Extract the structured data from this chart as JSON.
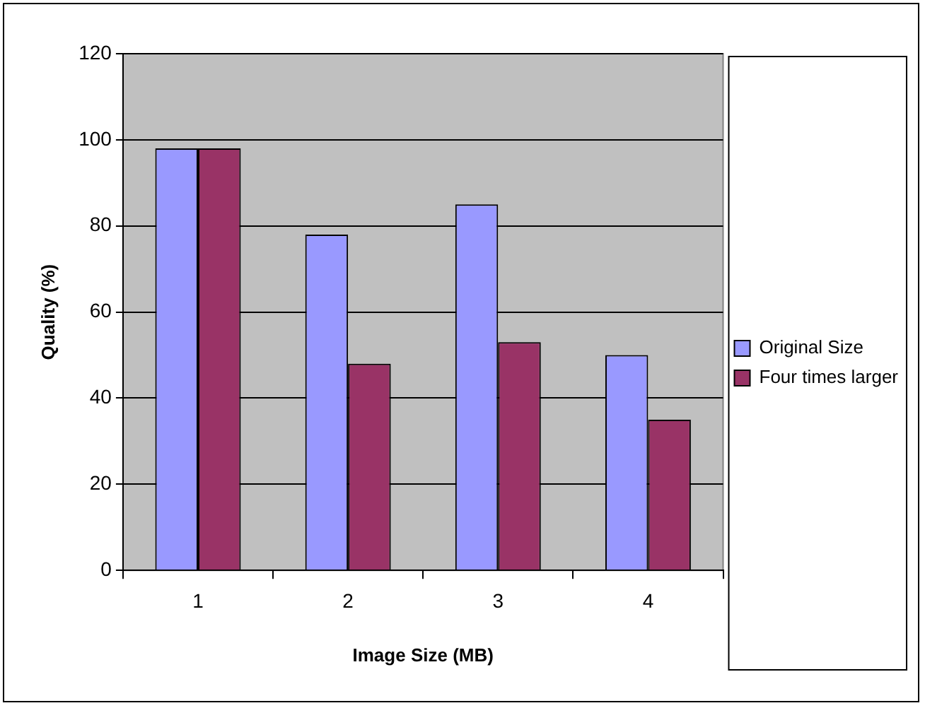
{
  "chart_data": {
    "type": "bar",
    "xlabel": "Image Size (MB)",
    "ylabel": "Quality (%)",
    "categories": [
      "1",
      "2",
      "3",
      "4"
    ],
    "series": [
      {
        "name": "Original Size",
        "color": "#9999ff",
        "values": [
          98,
          78,
          85,
          50
        ]
      },
      {
        "name": "Four times larger",
        "color": "#993366",
        "values": [
          98,
          48,
          53,
          35
        ]
      }
    ],
    "ylim": [
      0,
      120
    ],
    "yticks": [
      0,
      20,
      40,
      60,
      80,
      100,
      120
    ],
    "grid": "y",
    "legend": "right"
  }
}
